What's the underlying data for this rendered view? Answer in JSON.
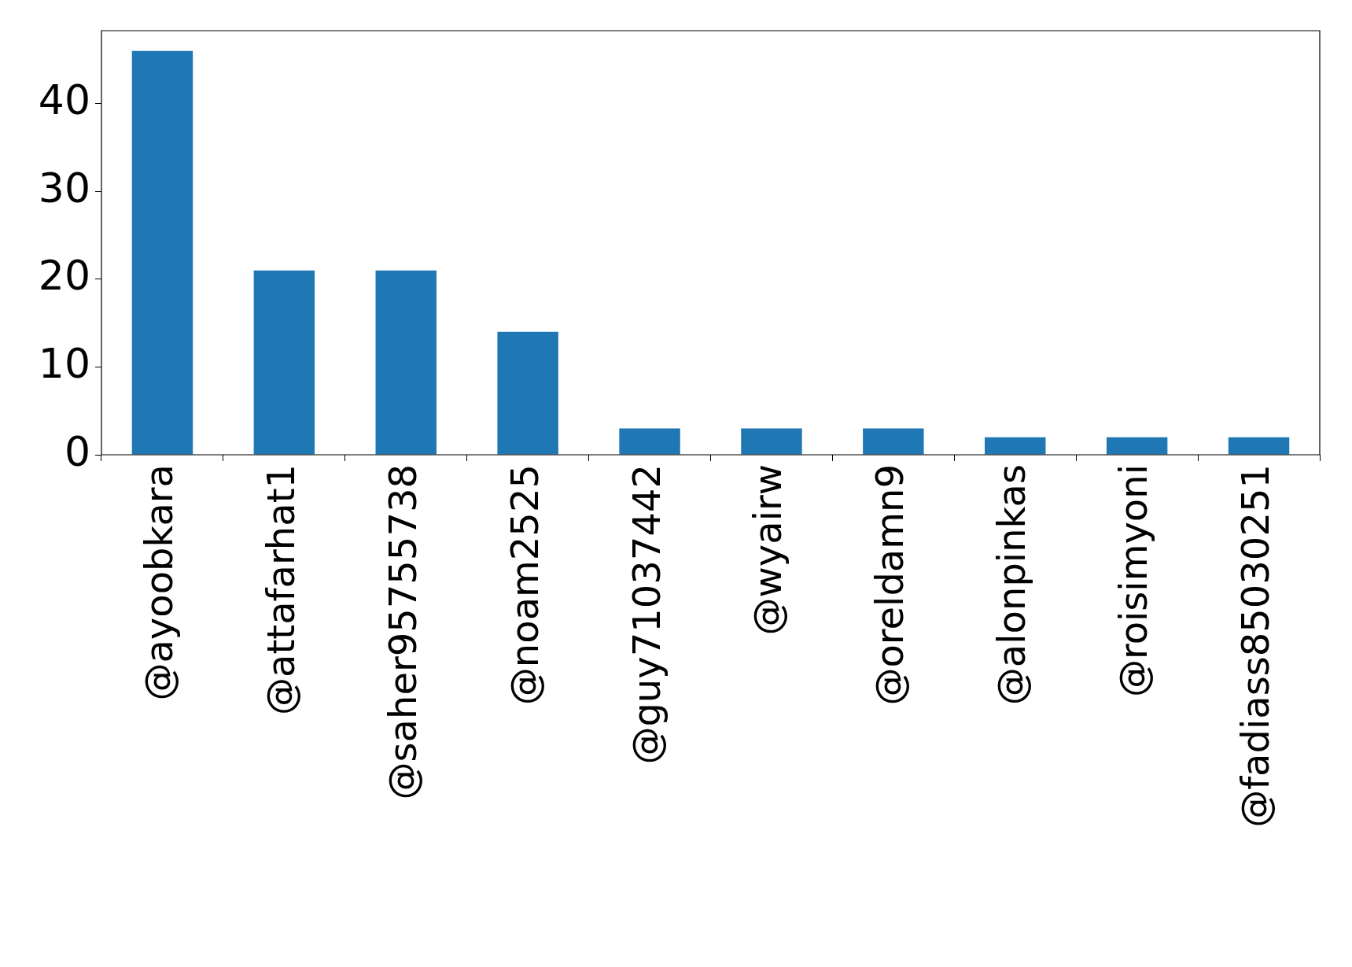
{
  "chart_data": {
    "type": "bar",
    "categories": [
      "@ayoobkara",
      "@attafarhat1",
      "@saher95755738",
      "@noam2525",
      "@guy71037442",
      "@wyairw",
      "@oreldamn9",
      "@alonpinkas",
      "@roisimyoni",
      "@fadiass85030251"
    ],
    "values": [
      46,
      21,
      21,
      14,
      3,
      3,
      3,
      2,
      2,
      2
    ],
    "color": "#1f77b4",
    "ylim": [
      0,
      48.3
    ],
    "yticks": [
      0,
      10,
      20,
      30,
      40
    ],
    "grid": false,
    "legend": false
  }
}
